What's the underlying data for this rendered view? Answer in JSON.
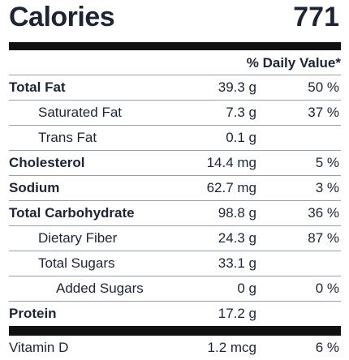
{
  "calories": {
    "label": "Calories",
    "value": "771"
  },
  "daily_value_header": "% Daily Value*",
  "nutrients": [
    {
      "name": "Total Fat",
      "amount": "39.3 g",
      "dv": "50 %"
    },
    {
      "name": "Saturated Fat",
      "amount": "7.3 g",
      "dv": "37 %"
    },
    {
      "name": "Trans Fat",
      "amount": "0.1 g",
      "dv": ""
    },
    {
      "name": "Cholesterol",
      "amount": "14.4 mg",
      "dv": "5 %"
    },
    {
      "name": "Sodium",
      "amount": "62.7 mg",
      "dv": "3 %"
    },
    {
      "name": "Total Carbohydrate",
      "amount": "98.8 g",
      "dv": "36 %"
    },
    {
      "name": "Dietary Fiber",
      "amount": "24.3 g",
      "dv": "87 %"
    },
    {
      "name": "Total Sugars",
      "amount": "33.1 g",
      "dv": ""
    },
    {
      "name": "Added Sugars",
      "amount": "0 g",
      "dv": "0 %"
    },
    {
      "name": "Protein",
      "amount": "17.2 g",
      "dv": ""
    }
  ],
  "vitamins": [
    {
      "name": "Vitamin D",
      "amount": "1.2 mcg",
      "dv": "6 %"
    }
  ]
}
